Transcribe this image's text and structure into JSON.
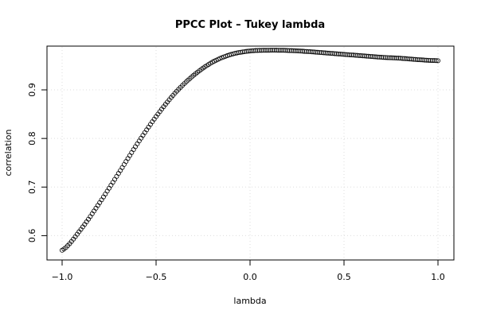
{
  "chart_data": {
    "type": "scatter",
    "title": "PPCC Plot – Tukey lambda",
    "xlabel": "lambda",
    "ylabel": "correlation",
    "xlim": [
      -1.0,
      1.0
    ],
    "ylim": [
      0.55,
      0.99
    ],
    "x_ticks": [
      -1.0,
      -0.5,
      0.0,
      0.5,
      1.0
    ],
    "x_tick_labels": [
      "−1.0",
      "−0.5",
      "0.0",
      "0.5",
      "1.0"
    ],
    "y_ticks": [
      0.6,
      0.7,
      0.8,
      0.9
    ],
    "y_tick_labels": [
      "0.6",
      "0.7",
      "0.8",
      "0.9"
    ],
    "grid": true,
    "marker": "open-circle",
    "point_color": "#000000",
    "grid_color": "#dddddd",
    "series": [
      {
        "x": [
          -1.0,
          -0.9,
          -0.8,
          -0.7,
          -0.6,
          -0.5,
          -0.4,
          -0.3,
          -0.2,
          -0.1,
          0.0,
          0.1,
          0.15,
          0.2,
          0.3,
          0.4,
          0.5,
          0.6,
          0.7,
          0.8,
          0.9,
          1.0
        ],
        "y": [
          0.57,
          0.613,
          0.668,
          0.728,
          0.789,
          0.845,
          0.893,
          0.93,
          0.957,
          0.973,
          0.98,
          0.9815,
          0.9815,
          0.981,
          0.979,
          0.976,
          0.973,
          0.97,
          0.967,
          0.965,
          0.962,
          0.96
        ]
      }
    ]
  }
}
